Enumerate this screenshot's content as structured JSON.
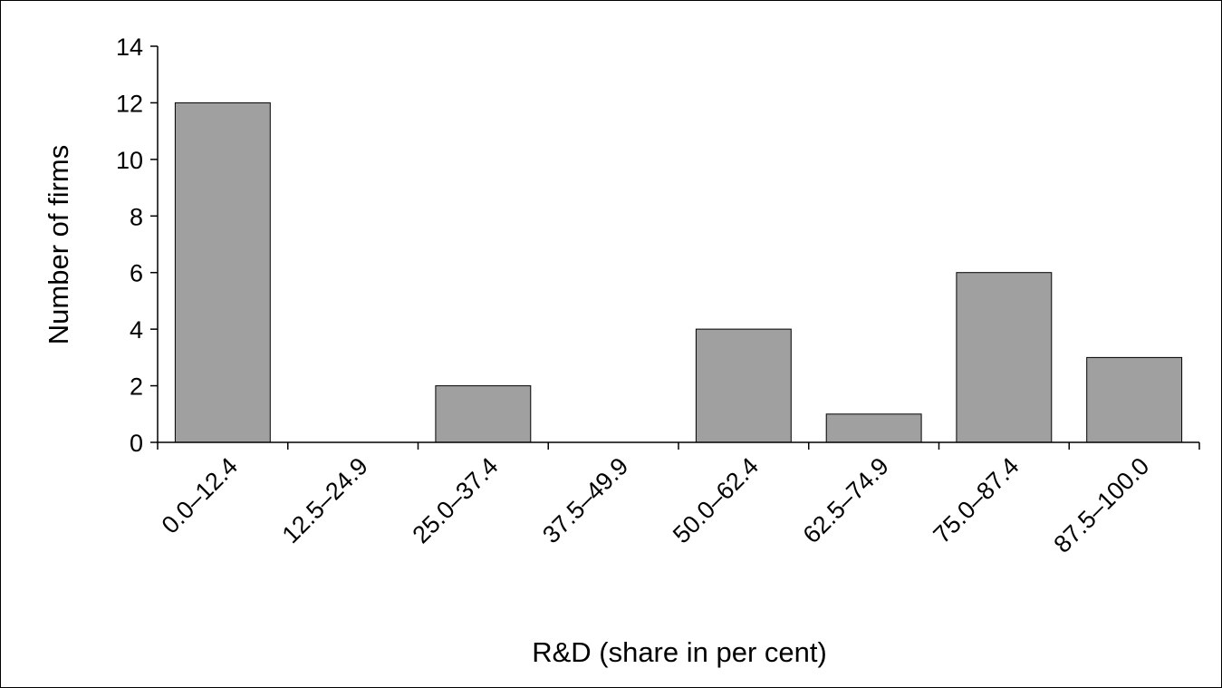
{
  "chart_data": {
    "type": "bar",
    "categories": [
      "0.0–12.4",
      "12.5–24.9",
      "25.0–37.4",
      "37.5–49.9",
      "50.0–62.4",
      "62.5–74.9",
      "75.0–87.4",
      "87.5–100.0"
    ],
    "values": [
      12,
      0,
      2,
      0,
      4,
      1,
      6,
      3
    ],
    "title": "",
    "xlabel": "R&D (share in per cent)",
    "ylabel": "Number of firms",
    "ylim": [
      0,
      14
    ],
    "yticks": [
      0,
      2,
      4,
      6,
      8,
      10,
      12,
      14
    ],
    "grid": false,
    "legend": "none",
    "colors": {
      "bar_fill": "#a0a0a0",
      "bar_stroke": "#000000",
      "axis": "#000000",
      "background": "#ffffff"
    }
  }
}
